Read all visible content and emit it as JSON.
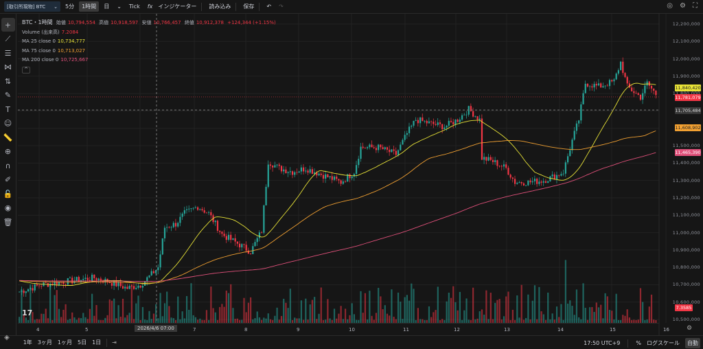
{
  "toolbar": {
    "symbol": "[取引所現物] BTC",
    "interval_5m": "5分",
    "interval_1h": "1時間",
    "interval_day": "日",
    "tick": "Tick",
    "indicators": "インジケーター",
    "load": "読み込み",
    "save": "保存",
    "undo_icon": "undo-icon",
    "redo_icon": "redo-icon"
  },
  "legend": {
    "title": "BTC・1時間",
    "open_label": "始値",
    "open": "10,794,554",
    "high_label": "高値",
    "high": "10,918,597",
    "low_label": "安値",
    "low": "10,766,457",
    "close_label": "終値",
    "close": "10,912,378",
    "change": "+124,344 (+1.15%)",
    "volume_label": "Volume (出来高)",
    "volume": "7.2084",
    "ma25_label": "MA 25 close 0",
    "ma25": "10,734,777",
    "ma75_label": "MA 75 close 0",
    "ma75": "10,713,027",
    "ma200_label": "MA 200 close 0",
    "ma200": "10,725,667"
  },
  "price_axis": {
    "ticks": [
      "12,200,000",
      "12,100,000",
      "12,000,000",
      "11,900,000",
      "11,800,000",
      "11,500,000",
      "11,400,000",
      "11,300,000",
      "11,200,000",
      "11,100,000",
      "11,000,000",
      "10,900,000",
      "10,800,000",
      "10,700,000",
      "10,600,000",
      "10,500,000"
    ],
    "badges": {
      "ma25": "11,840,420",
      "last": "11,781,079",
      "crosshair": "11,705,484",
      "ma75": "11,608,902",
      "ma200": "11,465,390",
      "volume": "7.3585"
    }
  },
  "time_axis": {
    "labels": [
      "4",
      "5",
      "7",
      "8",
      "9",
      "10",
      "11",
      "12",
      "13",
      "14",
      "15",
      "16"
    ],
    "crosshair": "2026/4/6   07:00"
  },
  "bottom": {
    "ranges": [
      "1年",
      "3ヶ月",
      "1ヶ月",
      "5日",
      "1日"
    ],
    "clock": "17:50 UTC+9",
    "percent": "%",
    "log": "ログスケール",
    "auto": "自動"
  },
  "colors": {
    "up": "#26a69a",
    "down": "#f23645",
    "ma25": "#e8e337",
    "ma75": "#f2a132",
    "ma200": "#e0507a",
    "background": "#161616"
  },
  "chart_data": {
    "type": "candlestick",
    "interval": "1h",
    "ylim": [
      10500000,
      12200000
    ],
    "approx_close_path": [
      [
        "4/3 15:00",
        10660000
      ],
      [
        "4/4 01:00",
        10700000
      ],
      [
        "4/4 13:00",
        10720000
      ],
      [
        "4/5 01:00",
        10740000
      ],
      [
        "4/5 07:00",
        10720000
      ],
      [
        "4/5 16:00",
        10680000
      ],
      [
        "4/5 22:00",
        10700000
      ],
      [
        "4/6 03:00",
        10760000
      ],
      [
        "4/6 06:00",
        10800000
      ],
      [
        "4/6 09:00",
        11030000
      ],
      [
        "4/6 14:00",
        11050000
      ],
      [
        "4/6 18:00",
        11110000
      ],
      [
        "4/7 00:00",
        11150000
      ],
      [
        "4/7 05:00",
        11110000
      ],
      [
        "4/7 11:00",
        10990000
      ],
      [
        "4/7 19:00",
        10930000
      ],
      [
        "4/8 00:00",
        10890000
      ],
      [
        "4/8 05:00",
        11010000
      ],
      [
        "4/8 08:00",
        11410000
      ],
      [
        "4/8 13:00",
        11370000
      ],
      [
        "4/8 19:00",
        11350000
      ],
      [
        "4/9 01:00",
        11370000
      ],
      [
        "4/9 09:00",
        11330000
      ],
      [
        "4/9 17:00",
        11290000
      ],
      [
        "4/9 23:00",
        11350000
      ],
      [
        "4/10 02:00",
        11490000
      ],
      [
        "4/10 10:00",
        11490000
      ],
      [
        "4/10 18:00",
        11450000
      ],
      [
        "4/10 23:00",
        11570000
      ],
      [
        "4/11 03:00",
        11650000
      ],
      [
        "4/11 09:00",
        11630000
      ],
      [
        "4/11 16:00",
        11610000
      ],
      [
        "4/11 22:00",
        11650000
      ],
      [
        "4/12 03:00",
        11710000
      ],
      [
        "4/12 08:00",
        11650000
      ],
      [
        "4/12 09:00",
        11430000
      ],
      [
        "4/12 14:00",
        11410000
      ],
      [
        "4/12 20:00",
        11370000
      ],
      [
        "4/13 00:00",
        11290000
      ],
      [
        "4/13 06:00",
        11290000
      ],
      [
        "4/13 13:00",
        11300000
      ],
      [
        "4/13 19:00",
        11330000
      ],
      [
        "4/13 22:00",
        11350000
      ],
      [
        "4/14 02:00",
        11530000
      ],
      [
        "4/14 05:00",
        11650000
      ],
      [
        "4/14 08:00",
        11860000
      ],
      [
        "4/14 14:00",
        11840000
      ],
      [
        "4/14 21:00",
        11870000
      ],
      [
        "4/15 00:00",
        11980000
      ],
      [
        "4/15 03:00",
        11840000
      ],
      [
        "4/15 09:00",
        11780000
      ],
      [
        "4/15 12:00",
        11860000
      ],
      [
        "4/15 17:00",
        11780000
      ]
    ]
  }
}
